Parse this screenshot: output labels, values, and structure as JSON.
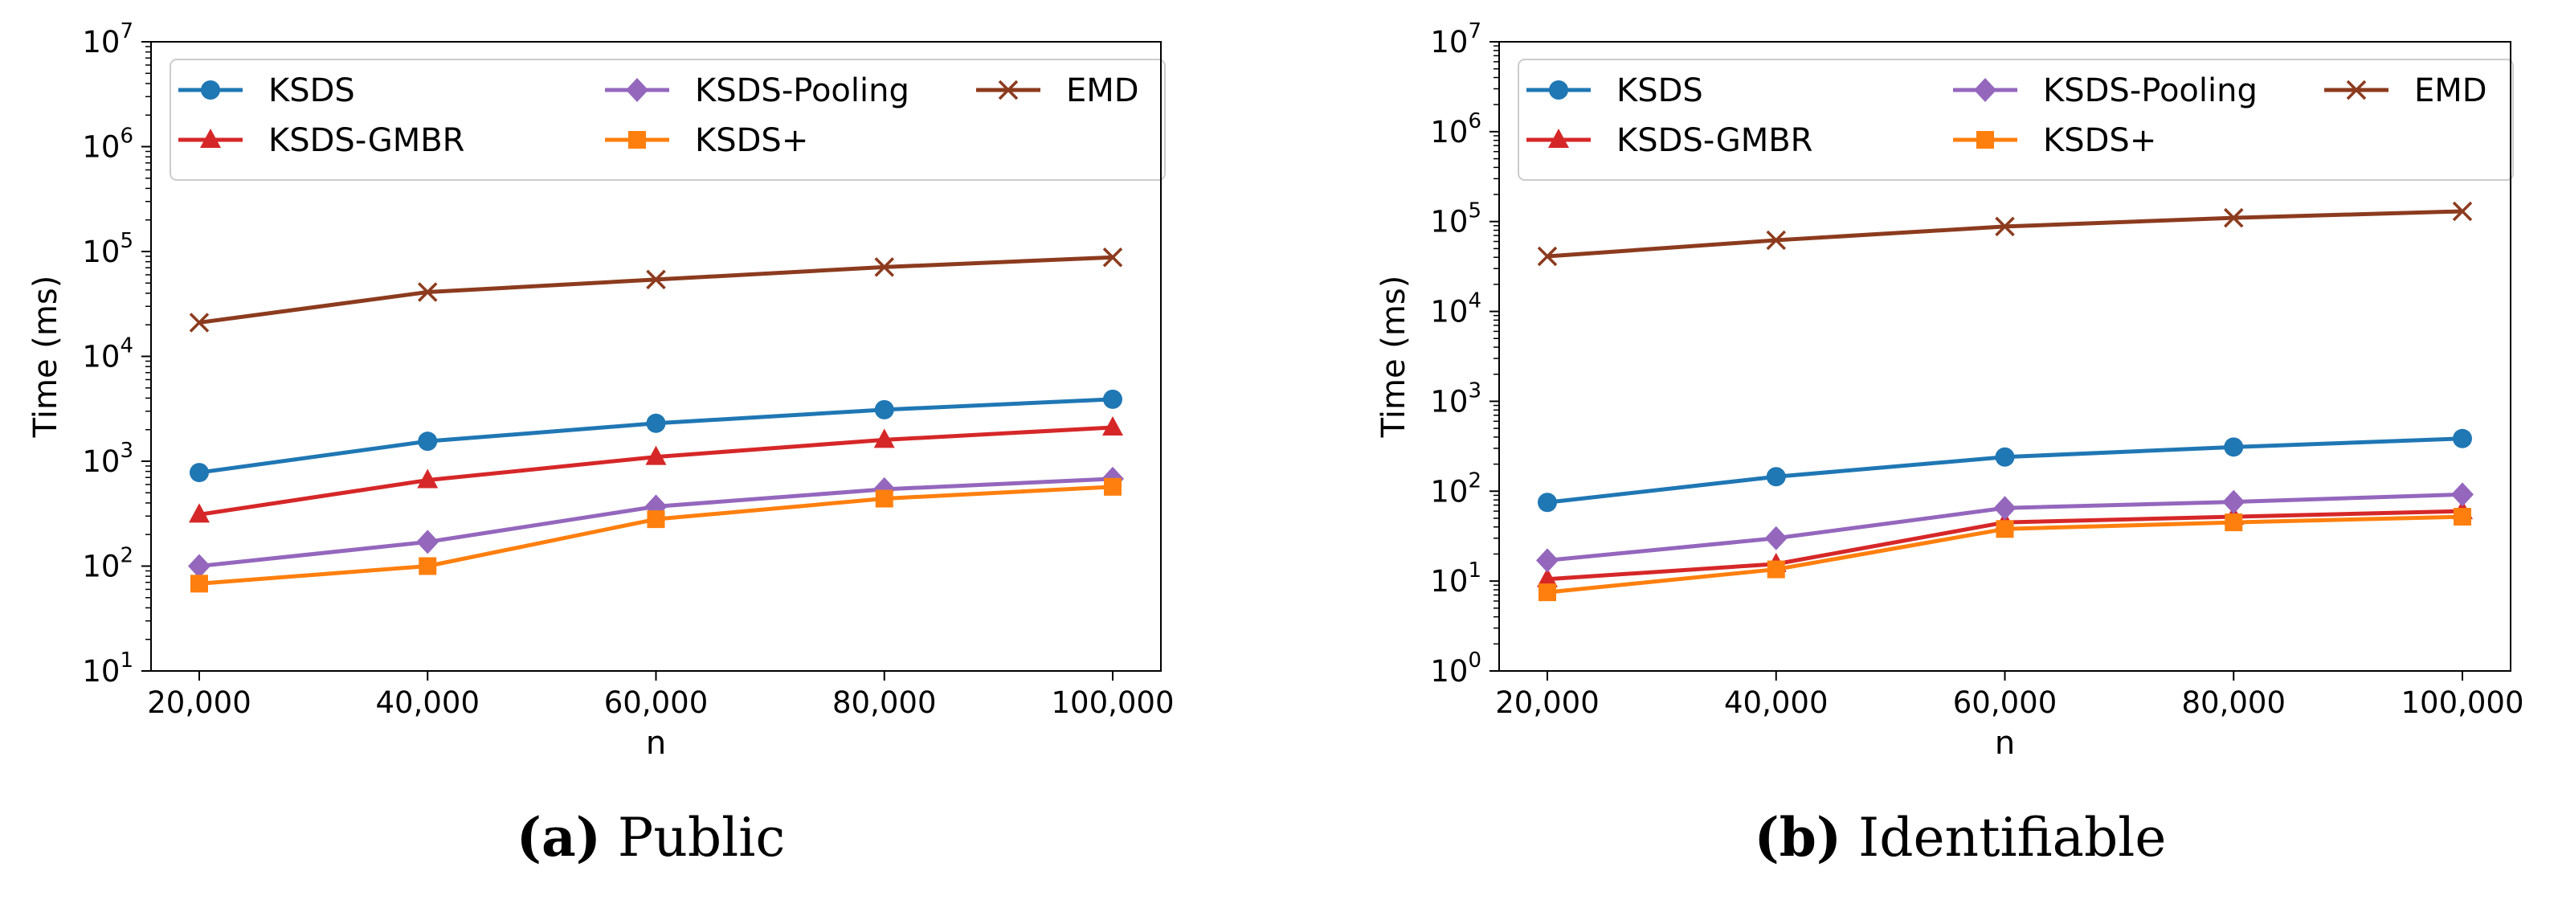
{
  "chart_data": [
    {
      "type": "line",
      "y_scale": "log",
      "ylim_exponents": [
        1,
        7
      ],
      "y_tick_exponents": [
        1,
        2,
        3,
        4,
        5,
        6,
        7
      ],
      "x": [
        20000,
        40000,
        60000,
        80000,
        100000
      ],
      "x_tick_labels": [
        "20,000",
        "40,000",
        "60,000",
        "80,000",
        "100,000"
      ],
      "xlabel": "n",
      "ylabel": "Time (ms)",
      "legend_position": "top",
      "caption_letter": "(a)",
      "caption_text": " Public",
      "series": [
        {
          "name": "KSDS",
          "color": "#1f77b4",
          "marker": "circle",
          "values": [
            780,
            1550,
            2300,
            3100,
            3900
          ]
        },
        {
          "name": "KSDS-GMBR",
          "color": "#d62728",
          "marker": "triangle",
          "values": [
            310,
            660,
            1100,
            1600,
            2100
          ]
        },
        {
          "name": "KSDS-Pooling",
          "color": "#9467bd",
          "marker": "diamond",
          "values": [
            100,
            170,
            370,
            540,
            680
          ]
        },
        {
          "name": "KSDS+",
          "color": "#ff7f0e",
          "marker": "square",
          "values": [
            68,
            100,
            280,
            440,
            570
          ]
        },
        {
          "name": "EMD",
          "color": "#8c3b1e",
          "marker": "x",
          "values": [
            21000,
            41000,
            54000,
            71000,
            88000
          ]
        }
      ]
    },
    {
      "type": "line",
      "y_scale": "log",
      "ylim_exponents": [
        0,
        7
      ],
      "y_tick_exponents": [
        0,
        1,
        2,
        3,
        4,
        5,
        6,
        7
      ],
      "x": [
        20000,
        40000,
        60000,
        80000,
        100000
      ],
      "x_tick_labels": [
        "20,000",
        "40,000",
        "60,000",
        "80,000",
        "100,000"
      ],
      "xlabel": "n",
      "ylabel": "Time (ms)",
      "legend_position": "top",
      "caption_letter": "(b)",
      "caption_text": " Identifiable",
      "series": [
        {
          "name": "KSDS",
          "color": "#1f77b4",
          "marker": "circle",
          "values": [
            75,
            145,
            240,
            310,
            385
          ]
        },
        {
          "name": "KSDS-GMBR",
          "color": "#d62728",
          "marker": "triangle",
          "values": [
            10.5,
            15.5,
            45,
            52,
            60
          ]
        },
        {
          "name": "KSDS-Pooling",
          "color": "#9467bd",
          "marker": "diamond",
          "values": [
            17,
            30,
            65,
            76,
            92
          ]
        },
        {
          "name": "KSDS+",
          "color": "#ff7f0e",
          "marker": "square",
          "values": [
            7.5,
            13.5,
            38,
            45,
            52
          ]
        },
        {
          "name": "EMD",
          "color": "#8c3b1e",
          "marker": "x",
          "values": [
            41000,
            62000,
            88000,
            110000,
            130000
          ]
        }
      ]
    }
  ]
}
